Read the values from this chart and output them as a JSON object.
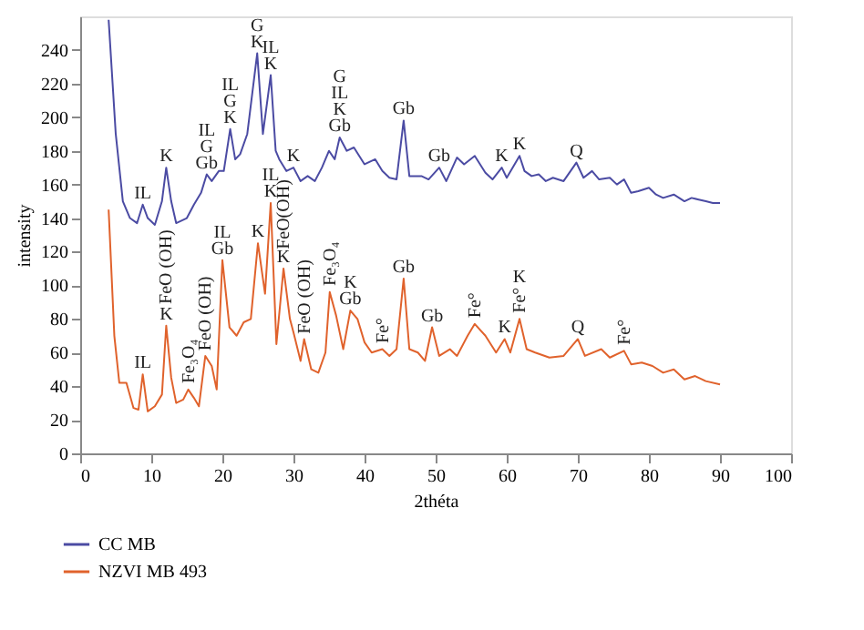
{
  "chart_data": {
    "type": "line",
    "xlabel": "2théta",
    "ylabel": "intensity",
    "xlim": [
      0,
      100
    ],
    "ylim": [
      0,
      260
    ],
    "xticks": [
      0,
      10,
      20,
      30,
      40,
      50,
      60,
      70,
      80,
      90,
      100
    ],
    "yticks": [
      0,
      20,
      40,
      60,
      80,
      100,
      120,
      140,
      160,
      180,
      200,
      220,
      240
    ],
    "grid": false,
    "legend": "bottom left",
    "marker": "none",
    "line_style": "solid",
    "series": [
      {
        "name": "CC MB",
        "color": "#4b4ba3",
        "x": [
          4,
          5,
          6,
          7,
          8,
          8.8,
          9.5,
          10.5,
          11.5,
          12.1,
          12.8,
          13.5,
          15,
          16,
          17,
          17.8,
          18.5,
          19.5,
          20.2,
          21.1,
          21.8,
          22.5,
          23.5,
          24.9,
          25.7,
          26.8,
          27.5,
          28,
          29,
          30,
          31,
          32,
          33,
          34,
          35,
          35.8,
          36.5,
          37.5,
          38.5,
          40,
          41.5,
          42.5,
          43.5,
          44.5,
          45.5,
          46.3,
          48,
          49,
          50.5,
          51.5,
          53,
          54,
          55.5,
          57,
          58,
          59.3,
          60,
          61.8,
          62.5,
          63.5,
          64.5,
          65.5,
          66.5,
          68,
          69.8,
          70.8,
          72,
          73,
          74.5,
          75.5,
          76.5,
          77.5,
          78.5,
          80,
          81,
          82,
          83.5,
          85,
          86,
          87,
          88,
          89,
          90
        ],
        "values": [
          258,
          190,
          150,
          140,
          137,
          148,
          140,
          136,
          150,
          170,
          150,
          137,
          140,
          148,
          155,
          166,
          162,
          168,
          168,
          193,
          175,
          178,
          190,
          238,
          190,
          225,
          180,
          175,
          168,
          170,
          162,
          165,
          162,
          170,
          180,
          175,
          188,
          180,
          182,
          172,
          175,
          168,
          164,
          163,
          198,
          165,
          165,
          163,
          170,
          162,
          176,
          172,
          177,
          167,
          163,
          170,
          164,
          177,
          168,
          165,
          166,
          162,
          164,
          162,
          173,
          164,
          168,
          163,
          164,
          160,
          163,
          155,
          156,
          158,
          154,
          152,
          154,
          150,
          152,
          151,
          150,
          149,
          149
        ]
      },
      {
        "name": "NZVI MB 493",
        "color": "#e0622c",
        "x": [
          4,
          4.8,
          5.5,
          6.5,
          7.5,
          8.2,
          8.8,
          9.5,
          10.5,
          11.5,
          12.1,
          12.8,
          13.5,
          14.5,
          15.2,
          16,
          16.7,
          17.6,
          18.5,
          19.2,
          20,
          21,
          22,
          23,
          24,
          25,
          26,
          26.8,
          27.6,
          28.6,
          29.5,
          30,
          31,
          31.5,
          32.5,
          33.5,
          34.5,
          35.1,
          36,
          37,
          38,
          39,
          40,
          41,
          42.5,
          43.5,
          44.5,
          45.5,
          46.3,
          47.5,
          48.5,
          49.5,
          50.5,
          52,
          53,
          54.5,
          55.5,
          57,
          58.5,
          59.7,
          60.5,
          61.8,
          62.8,
          64,
          66,
          68,
          70,
          71,
          73.3,
          74.5,
          76.5,
          77.5,
          79,
          80.5,
          82,
          83.5,
          85,
          86.5,
          88,
          90
        ],
        "values": [
          145,
          70,
          42,
          42,
          27,
          26,
          47,
          25,
          28,
          35,
          76,
          45,
          30,
          32,
          38,
          33,
          28,
          58,
          52,
          38,
          115,
          75,
          70,
          78,
          80,
          125,
          95,
          149,
          65,
          110,
          80,
          72,
          55,
          68,
          50,
          48,
          60,
          96,
          82,
          62,
          85,
          80,
          66,
          60,
          62,
          58,
          62,
          104,
          62,
          60,
          55,
          75,
          58,
          62,
          58,
          70,
          77,
          70,
          60,
          68,
          60,
          80,
          62,
          60,
          57,
          58,
          68,
          58,
          62,
          57,
          61,
          53,
          54,
          52,
          48,
          50,
          44,
          46,
          43,
          41
        ]
      }
    ],
    "annotations": [
      {
        "text": "IL",
        "x": 8.8,
        "y": 148
      },
      {
        "text": "K",
        "x": 12.1,
        "y": 170
      },
      {
        "text": "Gb",
        "x": 17.8,
        "y": 166
      },
      {
        "text": "G",
        "x": 17.8,
        "y": 166
      },
      {
        "text": "IL",
        "x": 17.8,
        "y": 166
      },
      {
        "text": "K",
        "x": 21.1,
        "y": 193
      },
      {
        "text": "G",
        "x": 21.1,
        "y": 193
      },
      {
        "text": "IL",
        "x": 21.1,
        "y": 193
      },
      {
        "text": "K",
        "x": 24.9,
        "y": 238
      },
      {
        "text": "G",
        "x": 24.9,
        "y": 238
      },
      {
        "text": "K",
        "x": 26.8,
        "y": 225
      },
      {
        "text": "IL",
        "x": 26.8,
        "y": 225
      },
      {
        "text": "K",
        "x": 30,
        "y": 170
      },
      {
        "text": "Gb",
        "x": 36.5,
        "y": 188
      },
      {
        "text": "K",
        "x": 36.5,
        "y": 188
      },
      {
        "text": "IL",
        "x": 36.5,
        "y": 188
      },
      {
        "text": "G",
        "x": 36.5,
        "y": 188
      },
      {
        "text": "Gb",
        "x": 45.5,
        "y": 198
      },
      {
        "text": "Gb",
        "x": 50.5,
        "y": 170
      },
      {
        "text": "K",
        "x": 59.3,
        "y": 170
      },
      {
        "text": "K",
        "x": 61.8,
        "y": 177
      },
      {
        "text": "Q",
        "x": 69.8,
        "y": 173
      },
      {
        "text": "IL",
        "x": 8.8,
        "y": 47
      },
      {
        "text": "K",
        "x": 12.1,
        "y": 76
      },
      {
        "text": "FeO (OH)",
        "x": 12.1,
        "y": 76
      },
      {
        "text": "Fe₃O₄",
        "x": 15.2,
        "y": 38
      },
      {
        "text": "FeO (OH)",
        "x": 17.6,
        "y": 58
      },
      {
        "text": "Gb",
        "x": 20,
        "y": 115
      },
      {
        "text": "IL",
        "x": 20,
        "y": 115
      },
      {
        "text": "K",
        "x": 25,
        "y": 125
      },
      {
        "text": "K",
        "x": 26.8,
        "y": 149
      },
      {
        "text": "IL",
        "x": 26.8,
        "y": 149
      },
      {
        "text": "K",
        "x": 28.6,
        "y": 110
      },
      {
        "text": "FeO(OH)",
        "x": 28.6,
        "y": 110
      },
      {
        "text": "FeO (OH)",
        "x": 31.5,
        "y": 68
      },
      {
        "text": "Fe₃O₄",
        "x": 35.1,
        "y": 96
      },
      {
        "text": "Gb",
        "x": 38,
        "y": 85
      },
      {
        "text": "K",
        "x": 38,
        "y": 85
      },
      {
        "text": "Fe°",
        "x": 42.5,
        "y": 62
      },
      {
        "text": "Gb",
        "x": 45.5,
        "y": 104
      },
      {
        "text": "Gb",
        "x": 49.5,
        "y": 75
      },
      {
        "text": "Fe°",
        "x": 55.5,
        "y": 77
      },
      {
        "text": "K",
        "x": 59.7,
        "y": 68
      },
      {
        "text": "Fe°",
        "x": 61.8,
        "y": 80
      },
      {
        "text": "K",
        "x": 61.8,
        "y": 80
      },
      {
        "text": "Q",
        "x": 70,
        "y": 68
      },
      {
        "text": "Fe°",
        "x": 76.5,
        "y": 61
      }
    ]
  }
}
